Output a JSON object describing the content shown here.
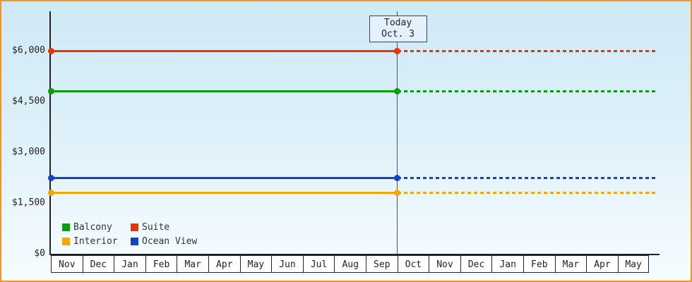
{
  "colors": {
    "frame_border": "#f59420",
    "axis": "#222222",
    "background_top": "#cfe9f6",
    "background_bottom": "#f6fcff",
    "today_line": "#445566"
  },
  "chart_data": {
    "type": "line",
    "title": "",
    "xlabel": "",
    "ylabel": "",
    "grid": false,
    "legend_position": "bottom-left",
    "x_months": [
      "Nov",
      "Dec",
      "Jan",
      "Feb",
      "Mar",
      "Apr",
      "May",
      "Jun",
      "Jul",
      "Aug",
      "Sep",
      "Oct",
      "Nov",
      "Dec",
      "Jan",
      "Feb",
      "Mar",
      "Apr",
      "May"
    ],
    "ylim": [
      0,
      6000
    ],
    "y_ticks": [
      {
        "label": "$0",
        "value": 0
      },
      {
        "label": "$1,500",
        "value": 1500
      },
      {
        "label": "$3,000",
        "value": 3000
      },
      {
        "label": "$4,500",
        "value": 4500
      },
      {
        "label": "$6,000",
        "value": 6000
      }
    ],
    "today": {
      "line1": "Today",
      "line2": "Oct. 3",
      "month_index": 11
    },
    "series": [
      {
        "name": "Suite",
        "value": 6000,
        "color": "#ee3300",
        "style": "solid-then-dotted"
      },
      {
        "name": "Balcony",
        "value": 4800,
        "color": "#0b9e0b",
        "style": "solid-then-dotted"
      },
      {
        "name": "Ocean View",
        "value": 2250,
        "color": "#1144cc",
        "style": "solid-then-dotted"
      },
      {
        "name": "Interior",
        "value": 1800,
        "color": "#f5a800",
        "style": "solid-then-dotted"
      }
    ],
    "legend_rows": [
      [
        "Balcony",
        "Suite"
      ],
      [
        "Interior",
        "Ocean View"
      ]
    ]
  }
}
